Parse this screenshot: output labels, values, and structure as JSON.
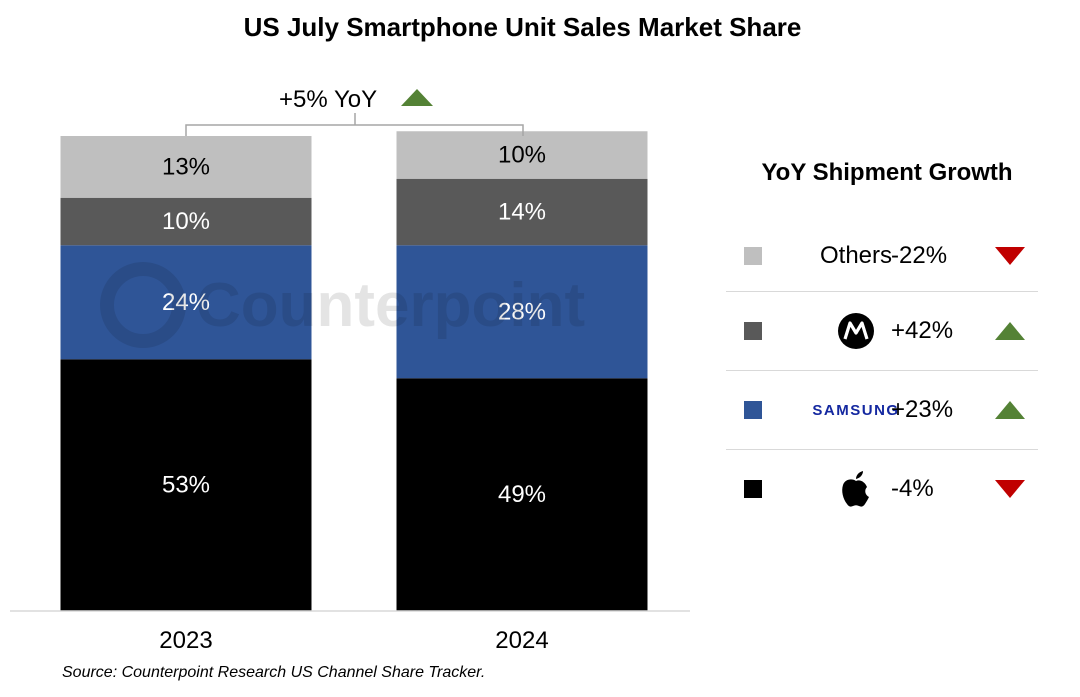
{
  "chart_data": {
    "type": "bar",
    "stacked": true,
    "title": "US July Smartphone Unit Sales Market Share",
    "categories": [
      "2023",
      "2024"
    ],
    "series": [
      {
        "name": "Apple",
        "color": "#000000",
        "label_color": "#ffffff",
        "values": [
          53,
          49
        ],
        "labels": [
          "53%",
          "49%"
        ]
      },
      {
        "name": "Samsung",
        "color": "#2f5597",
        "label_color": "#ffffff",
        "values": [
          24,
          28
        ],
        "labels": [
          "24%",
          "28%"
        ]
      },
      {
        "name": "Motorola",
        "color": "#595959",
        "label_color": "#ffffff",
        "values": [
          10,
          14
        ],
        "labels": [
          "10%",
          "14%"
        ]
      },
      {
        "name": "Others",
        "color": "#bfbfbf",
        "label_color": "#000000",
        "values": [
          13,
          10
        ],
        "labels": [
          "13%",
          "10%"
        ]
      }
    ],
    "ylim": [
      0,
      100
    ],
    "annotation": "+5% YoY",
    "annotation_direction": "up"
  },
  "legend": {
    "title": "YoY Shipment Growth",
    "items": [
      {
        "name": "Others",
        "brand_type": "text",
        "label": "Others",
        "color": "#bfbfbf",
        "growth": "-22%",
        "direction": "down"
      },
      {
        "name": "Motorola",
        "brand_type": "motorola-logo",
        "color": "#595959",
        "growth": "+42%",
        "direction": "up"
      },
      {
        "name": "Samsung",
        "brand_type": "samsung-logo",
        "label": "SAMSUNG",
        "color": "#2f5597",
        "growth": "+23%",
        "direction": "up"
      },
      {
        "name": "Apple",
        "brand_type": "apple-logo",
        "color": "#000000",
        "growth": "-4%",
        "direction": "down"
      }
    ]
  },
  "colors": {
    "up": "#548235",
    "down": "#c00000"
  },
  "watermark": "Counterpoint",
  "source": "Source: Counterpoint Research US Channel Share Tracker."
}
